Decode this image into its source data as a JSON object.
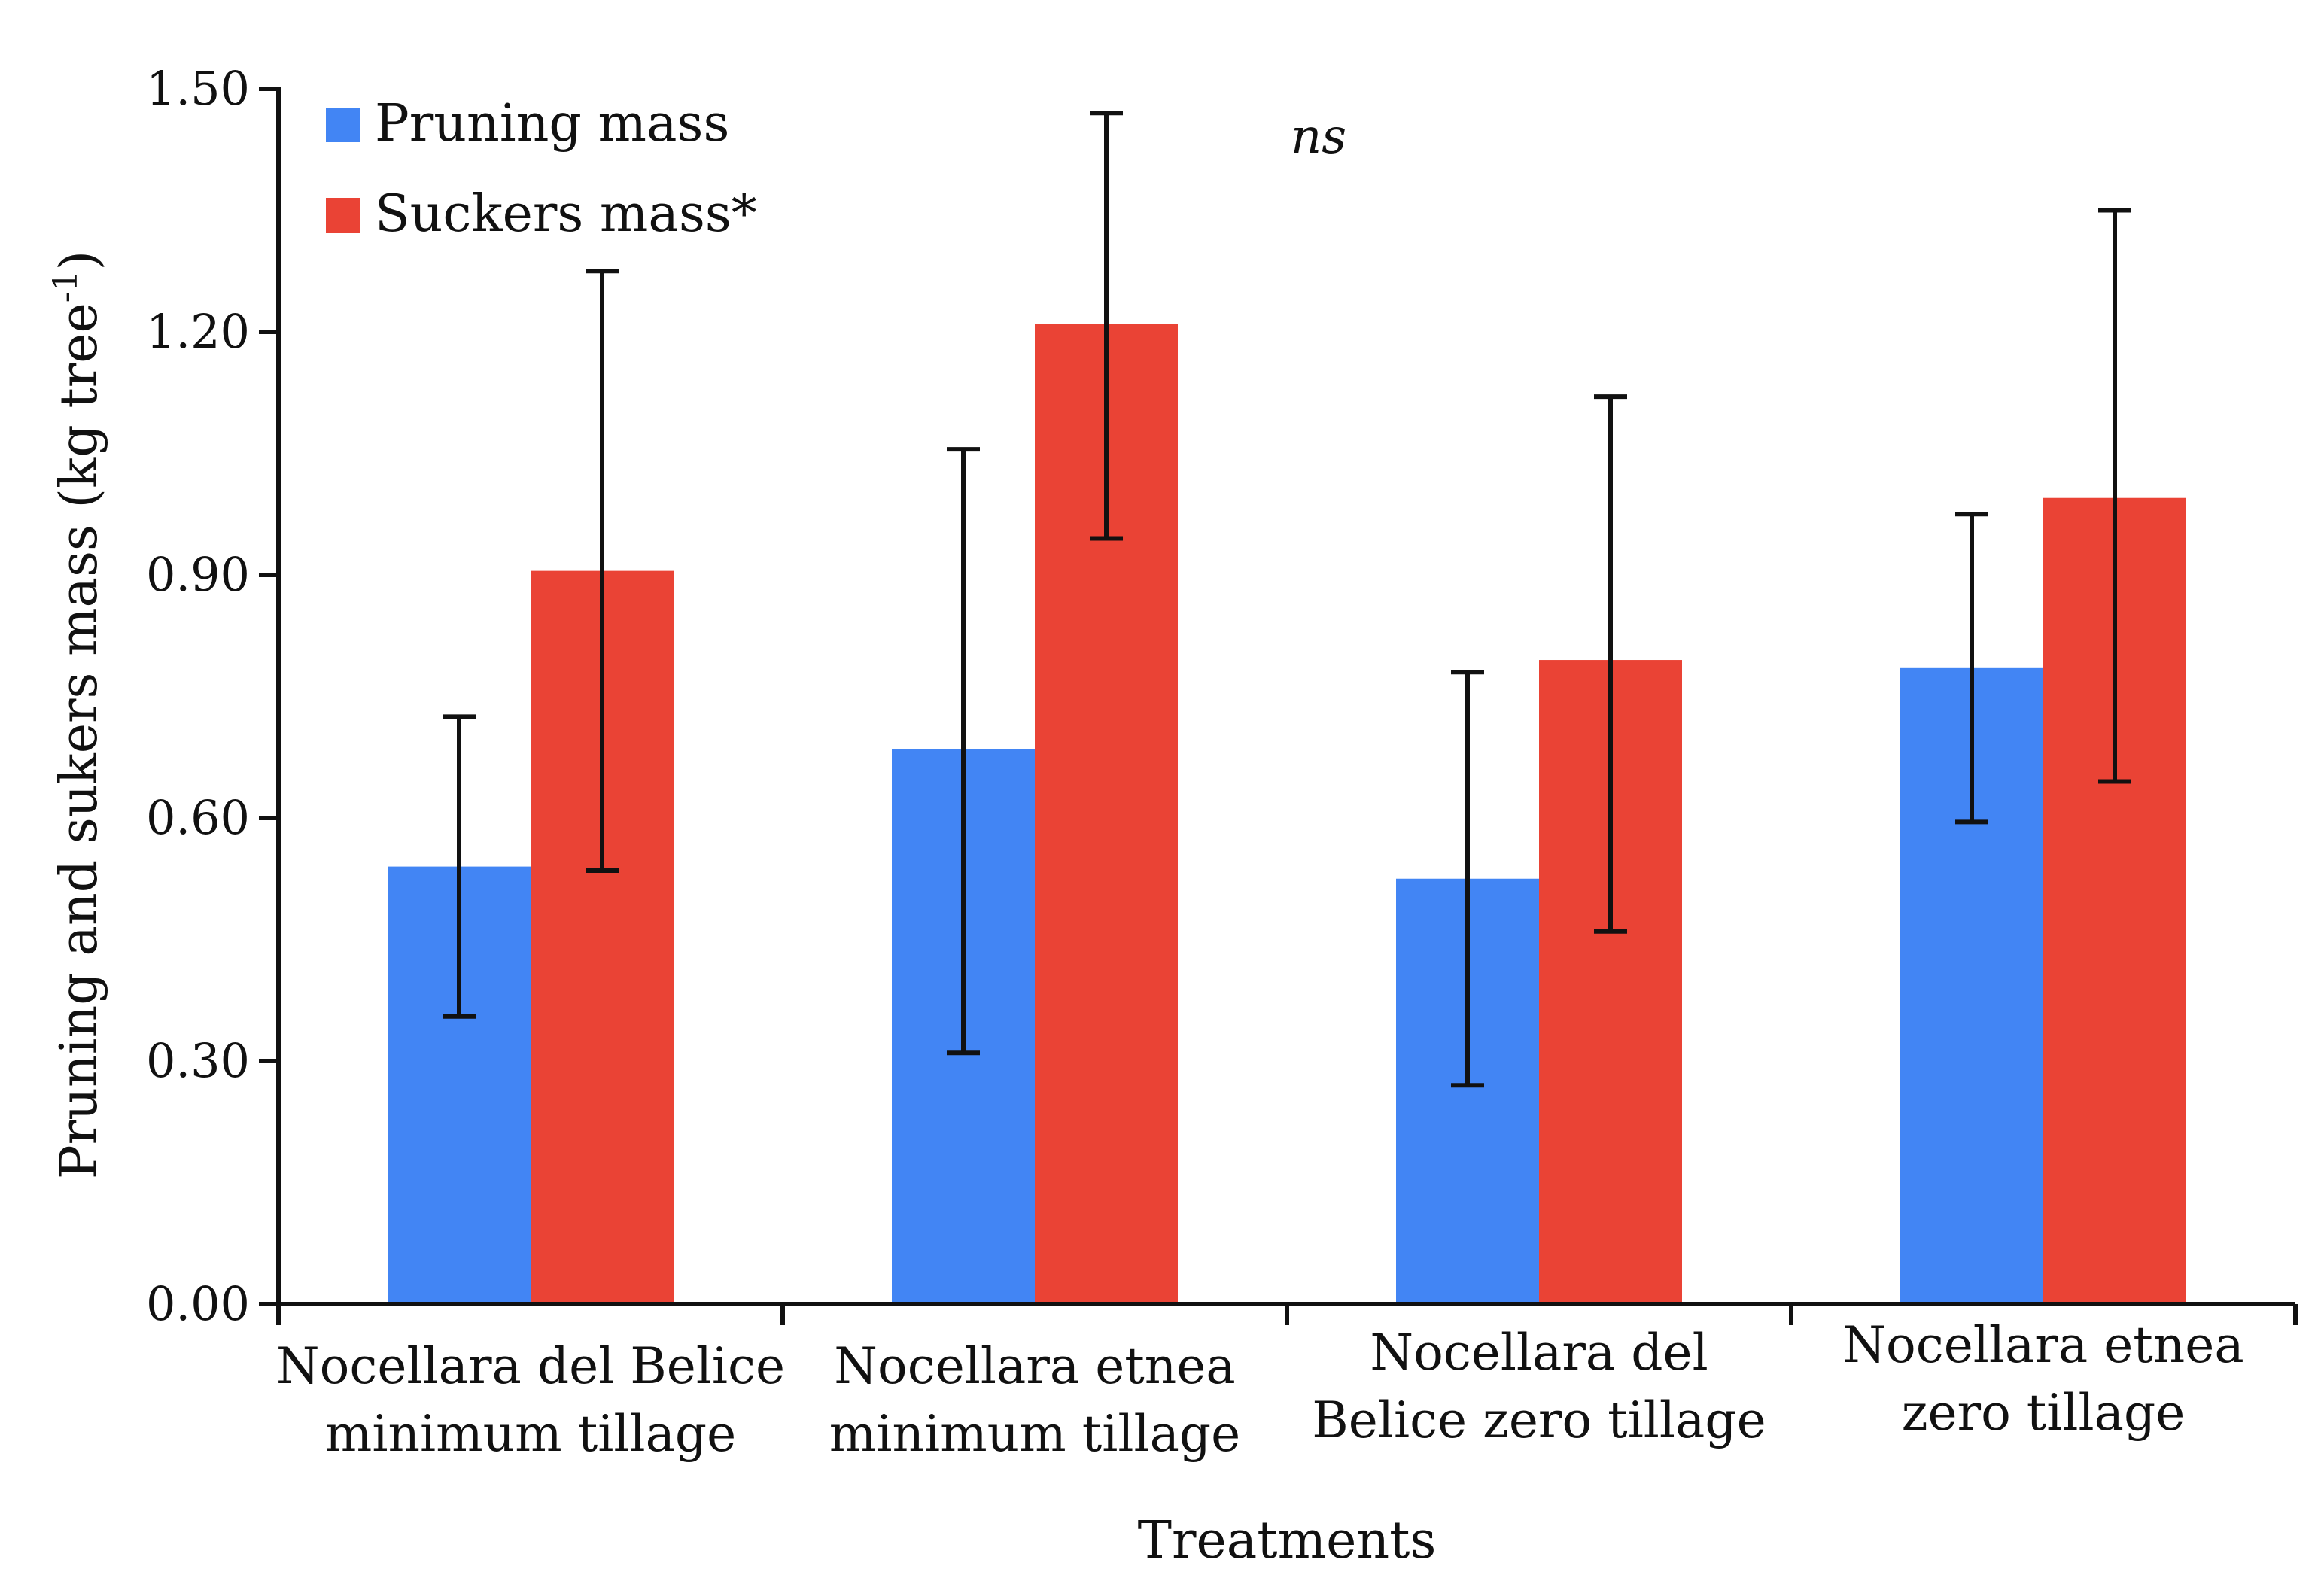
{
  "chart_data": {
    "type": "bar",
    "title": "",
    "xlabel": "Treatments",
    "ylabel": "Pruning and sukers mass (kg tree",
    "ylabel_superscript": "-1",
    "ylabel_close": ")",
    "ylim": [
      0,
      1.5
    ],
    "yticks": [
      "0.00",
      "0.30",
      "0.60",
      "0.90",
      "1.20",
      "1.50"
    ],
    "ytick_values": [
      0,
      0.3,
      0.6,
      0.9,
      1.2,
      1.5
    ],
    "categories": [
      [
        "Nocellara del Belice",
        "minimum  tillage"
      ],
      [
        "Nocellara etnea",
        "minimum  tillage"
      ],
      [
        "Nocellara del",
        "Belice zero tillage"
      ],
      [
        "Nocellara etnea",
        "zero tillage"
      ]
    ],
    "series": [
      {
        "name": "Pruning mass",
        "color": "#4285f4",
        "values": [
          0.54,
          0.685,
          0.525,
          0.785
        ],
        "err_low": [
          0.355,
          0.31,
          0.27,
          0.595
        ],
        "err_high": [
          0.725,
          1.055,
          0.78,
          0.975
        ]
      },
      {
        "name": "Suckers mass*",
        "color": "#ea4335",
        "values": [
          0.905,
          1.21,
          0.795,
          0.995
        ],
        "err_low": [
          0.535,
          0.945,
          0.46,
          0.645
        ],
        "err_high": [
          1.275,
          1.47,
          1.12,
          1.35
        ]
      }
    ],
    "annotations": [
      "ns"
    ],
    "legend_position": "top-left",
    "grid": false
  }
}
